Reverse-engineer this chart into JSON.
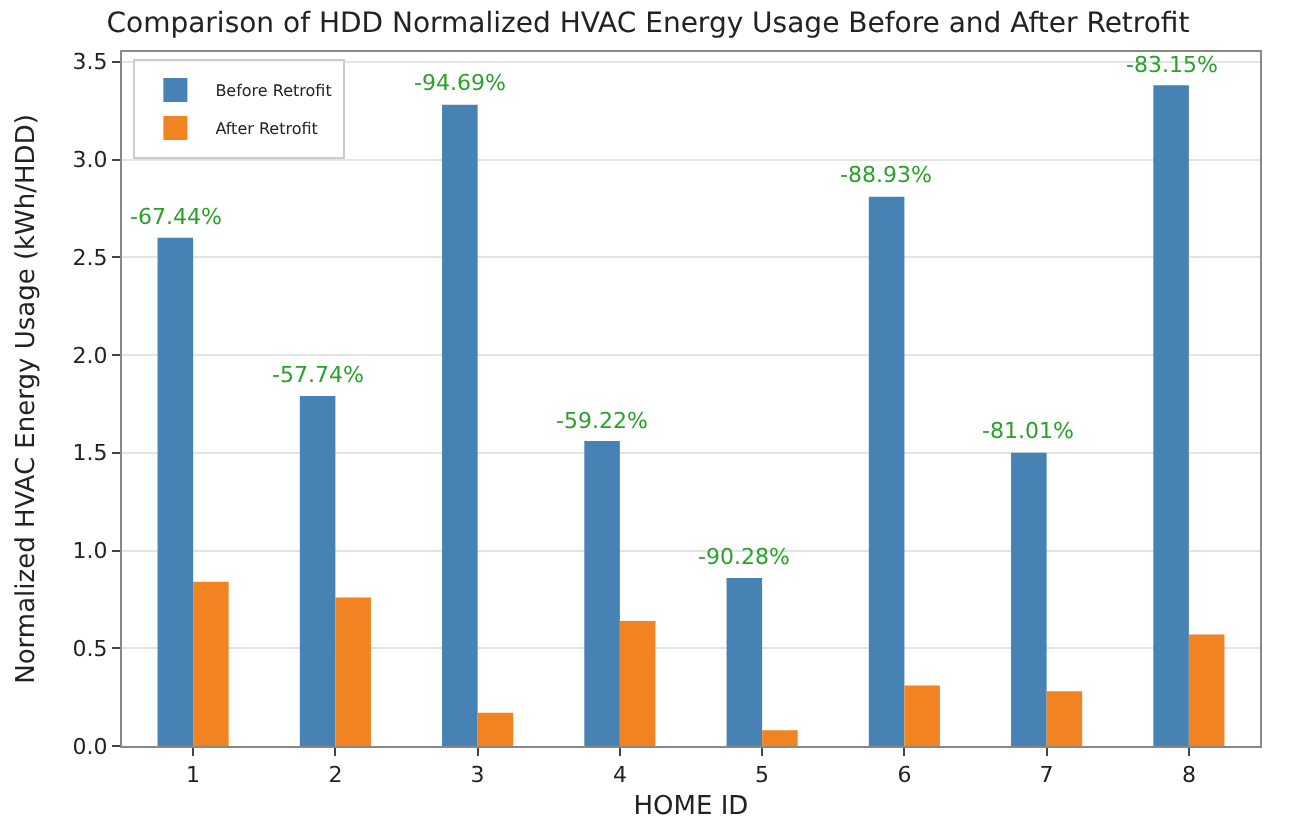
{
  "chart_data": {
    "type": "bar",
    "title": "Comparison of HDD Normalized HVAC Energy Usage Before and After Retrofit",
    "xlabel": "HOME ID",
    "ylabel": "Normalized HVAC Energy Usage (kWh/HDD)",
    "categories": [
      "1",
      "2",
      "3",
      "4",
      "5",
      "6",
      "7",
      "8"
    ],
    "series": [
      {
        "name": "Before Retrofit",
        "color": "#4682b4",
        "values": [
          2.6,
          1.79,
          3.28,
          1.56,
          0.86,
          2.81,
          1.5,
          3.38
        ]
      },
      {
        "name": "After Retrofit",
        "color": "#f28322",
        "values": [
          0.84,
          0.76,
          0.17,
          0.64,
          0.08,
          0.31,
          0.28,
          0.57
        ]
      }
    ],
    "ylim": [
      0,
      3.55
    ],
    "yticks": [
      {
        "value": 0,
        "label": "0.0"
      },
      {
        "value": 0.5,
        "label": "0.5"
      },
      {
        "value": 1,
        "label": "1.0"
      },
      {
        "value": 1.5,
        "label": "1.5"
      },
      {
        "value": 2,
        "label": "2.0"
      },
      {
        "value": 2.5,
        "label": "2.5"
      },
      {
        "value": 3,
        "label": "3.0"
      },
      {
        "value": 3.5,
        "label": "3.5"
      }
    ],
    "annotations": [
      {
        "text": "-67.44%",
        "x": "1",
        "y": 2.6
      },
      {
        "text": "-57.74%",
        "x": "2",
        "y": 1.79
      },
      {
        "text": "-94.69%",
        "x": "3",
        "y": 3.28
      },
      {
        "text": "-59.22%",
        "x": "4",
        "y": 1.56
      },
      {
        "text": "-90.28%",
        "x": "5",
        "y": 0.86
      },
      {
        "text": "-88.93%",
        "x": "6",
        "y": 2.81
      },
      {
        "text": "-81.01%",
        "x": "7",
        "y": 1.5
      },
      {
        "text": "-83.15%",
        "x": "8",
        "y": 3.38
      }
    ],
    "grid": "y",
    "legend": "top left"
  }
}
